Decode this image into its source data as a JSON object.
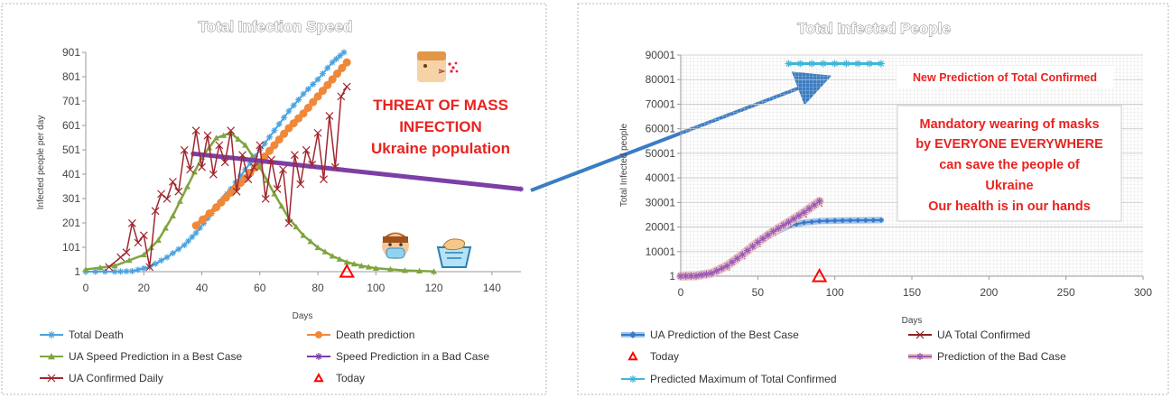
{
  "chart_data": [
    {
      "type": "line",
      "title": "Total Infection Speed",
      "xlabel": "Days",
      "ylabel": "Infected people per day",
      "xlim": [
        0,
        150
      ],
      "ylim": [
        1,
        901
      ],
      "x_ticks": [
        "0",
        "20",
        "40",
        "60",
        "80",
        "100",
        "120",
        "140"
      ],
      "y_ticks": [
        "1",
        "101",
        "201",
        "301",
        "401",
        "501",
        "601",
        "701",
        "801",
        "901"
      ],
      "annotations": [
        "THREAT OF MASS",
        "INFECTION",
        "Ukraine population"
      ],
      "series": [
        {
          "name": "Total Death",
          "color": "#4aa3df",
          "marker": "star",
          "x": [
            0,
            10,
            16,
            22,
            28,
            34,
            38,
            42,
            46,
            50,
            55,
            60,
            65,
            70,
            75,
            80,
            85,
            89
          ],
          "y": [
            1,
            1,
            3,
            20,
            60,
            110,
            160,
            220,
            280,
            340,
            420,
            500,
            580,
            660,
            730,
            790,
            860,
            901
          ]
        },
        {
          "name": "Death prediction",
          "color": "#f0883a",
          "marker": "circle",
          "x": [
            38,
            45,
            50,
            55,
            60,
            65,
            70,
            75,
            80,
            85,
            90
          ],
          "y": [
            190,
            265,
            325,
            385,
            450,
            520,
            590,
            650,
            720,
            790,
            860
          ]
        },
        {
          "name": "UA Speed  Prediction in a  Best Case",
          "color": "#7fa540",
          "marker": "triangle",
          "x": [
            0,
            10,
            20,
            25,
            30,
            35,
            40,
            45,
            50,
            55,
            60,
            65,
            70,
            75,
            80,
            85,
            90,
            95,
            100,
            110,
            120
          ],
          "y": [
            10,
            25,
            70,
            130,
            230,
            350,
            470,
            550,
            570,
            520,
            430,
            320,
            220,
            150,
            100,
            65,
            40,
            25,
            15,
            6,
            2
          ]
        },
        {
          "name": "Speed Prediction in a Bad Case",
          "color": "#7b3fa6",
          "marker": "star",
          "x": [
            37,
            150
          ],
          "y": [
            485,
            340
          ]
        },
        {
          "name": "UA Confirmed Daily",
          "color": "#a0262e",
          "marker": "x",
          "x": [
            8,
            12,
            14,
            16,
            18,
            20,
            22,
            24,
            26,
            28,
            30,
            32,
            34,
            36,
            38,
            40,
            42,
            44,
            46,
            48,
            50,
            52,
            54,
            56,
            58,
            60,
            62,
            64,
            66,
            68,
            70,
            72,
            74,
            76,
            78,
            80,
            82,
            84,
            86,
            88,
            90
          ],
          "y": [
            20,
            60,
            80,
            200,
            120,
            150,
            20,
            250,
            320,
            300,
            370,
            330,
            500,
            420,
            580,
            430,
            560,
            400,
            520,
            450,
            580,
            330,
            480,
            380,
            430,
            520,
            300,
            460,
            340,
            420,
            200,
            480,
            360,
            500,
            440,
            570,
            380,
            640,
            430,
            720,
            760
          ]
        },
        {
          "name": "Today",
          "color": "#ff0000",
          "marker": "open-triangle",
          "x": [
            90
          ],
          "y": [
            1
          ]
        }
      ]
    },
    {
      "type": "line",
      "title": "Total Infected People",
      "xlabel": "Days",
      "ylabel": "Total Infected  people",
      "xlim": [
        0,
        300
      ],
      "ylim": [
        1,
        90001
      ],
      "x_ticks": [
        "0",
        "50",
        "100",
        "150",
        "200",
        "250",
        "300"
      ],
      "y_ticks": [
        "1",
        "10001",
        "20001",
        "30001",
        "40001",
        "50001",
        "60001",
        "70001",
        "80001",
        "90001"
      ],
      "annotations": [
        "New  Prediction of  Total Confirmed",
        "Mandatory wearing of masks",
        "by EVERYONE EVERYWHERE",
        "can  save the people of",
        "Ukraine",
        "Our health is in our hands"
      ],
      "series": [
        {
          "name": "UA Prediction of the Best Case",
          "color": "#3a78c9",
          "marker": "diamond",
          "x": [
            0,
            10,
            20,
            30,
            40,
            50,
            60,
            70,
            80,
            90,
            100,
            110,
            120,
            130
          ],
          "y": [
            1,
            100,
            1000,
            4000,
            8500,
            13500,
            17500,
            20500,
            21800,
            22400,
            22600,
            22700,
            22750,
            22800
          ]
        },
        {
          "name": "UA Total Confirmed",
          "color": "#8b2323",
          "marker": "x",
          "x": [
            0,
            10,
            20,
            30,
            40,
            50,
            60,
            70,
            80,
            90
          ],
          "y": [
            1,
            100,
            900,
            3500,
            8000,
            13000,
            17500,
            21000,
            25000,
            29500
          ]
        },
        {
          "name": "Today",
          "color": "#ff0000",
          "marker": "open-triangle",
          "x": [
            90
          ],
          "y": [
            1
          ]
        },
        {
          "name": "Prediction of the Bad Case",
          "color": "#9b59b6",
          "marker": "star",
          "x": [
            0,
            10,
            20,
            30,
            40,
            50,
            60,
            70,
            80,
            90
          ],
          "y": [
            1,
            150,
            1200,
            4200,
            8800,
            13800,
            18200,
            22000,
            26000,
            30500
          ]
        },
        {
          "name": "Predicted Maximum of Total Confirmed",
          "color": "#3fb6da",
          "marker": "star",
          "x": [
            70,
            130
          ],
          "y": [
            86500,
            86500
          ]
        }
      ]
    }
  ]
}
